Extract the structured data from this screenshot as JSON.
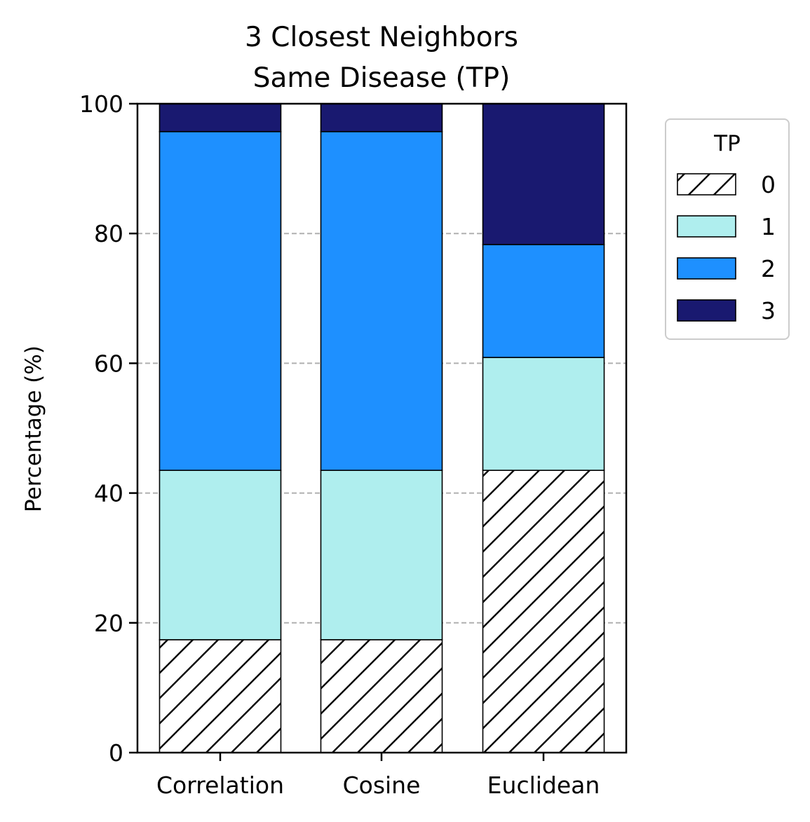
{
  "chart_data": {
    "type": "bar",
    "stacked": true,
    "title": [
      "3 Closest Neighbors",
      "Same Disease (TP)"
    ],
    "xlabel": "",
    "ylabel": "Percentage (%)",
    "ylim": [
      0,
      100
    ],
    "yticks": [
      "0",
      "20",
      "40",
      "60",
      "80",
      "100"
    ],
    "grid": "y-dashed",
    "categories": [
      "Correlation",
      "Cosine",
      "Euclidean"
    ],
    "legend": {
      "title": "TP",
      "placement": "outside-right"
    },
    "series": [
      {
        "name": "0",
        "values": [
          17.4,
          17.4,
          43.5
        ],
        "color": "#ffffff",
        "hatch": "diagonal"
      },
      {
        "name": "1",
        "values": [
          26.1,
          26.1,
          17.4
        ],
        "color": "#afeeee"
      },
      {
        "name": "2",
        "values": [
          52.2,
          52.2,
          17.4
        ],
        "color": "#1e90ff"
      },
      {
        "name": "3",
        "values": [
          4.3,
          4.3,
          21.7
        ],
        "color": "#191970"
      }
    ]
  }
}
